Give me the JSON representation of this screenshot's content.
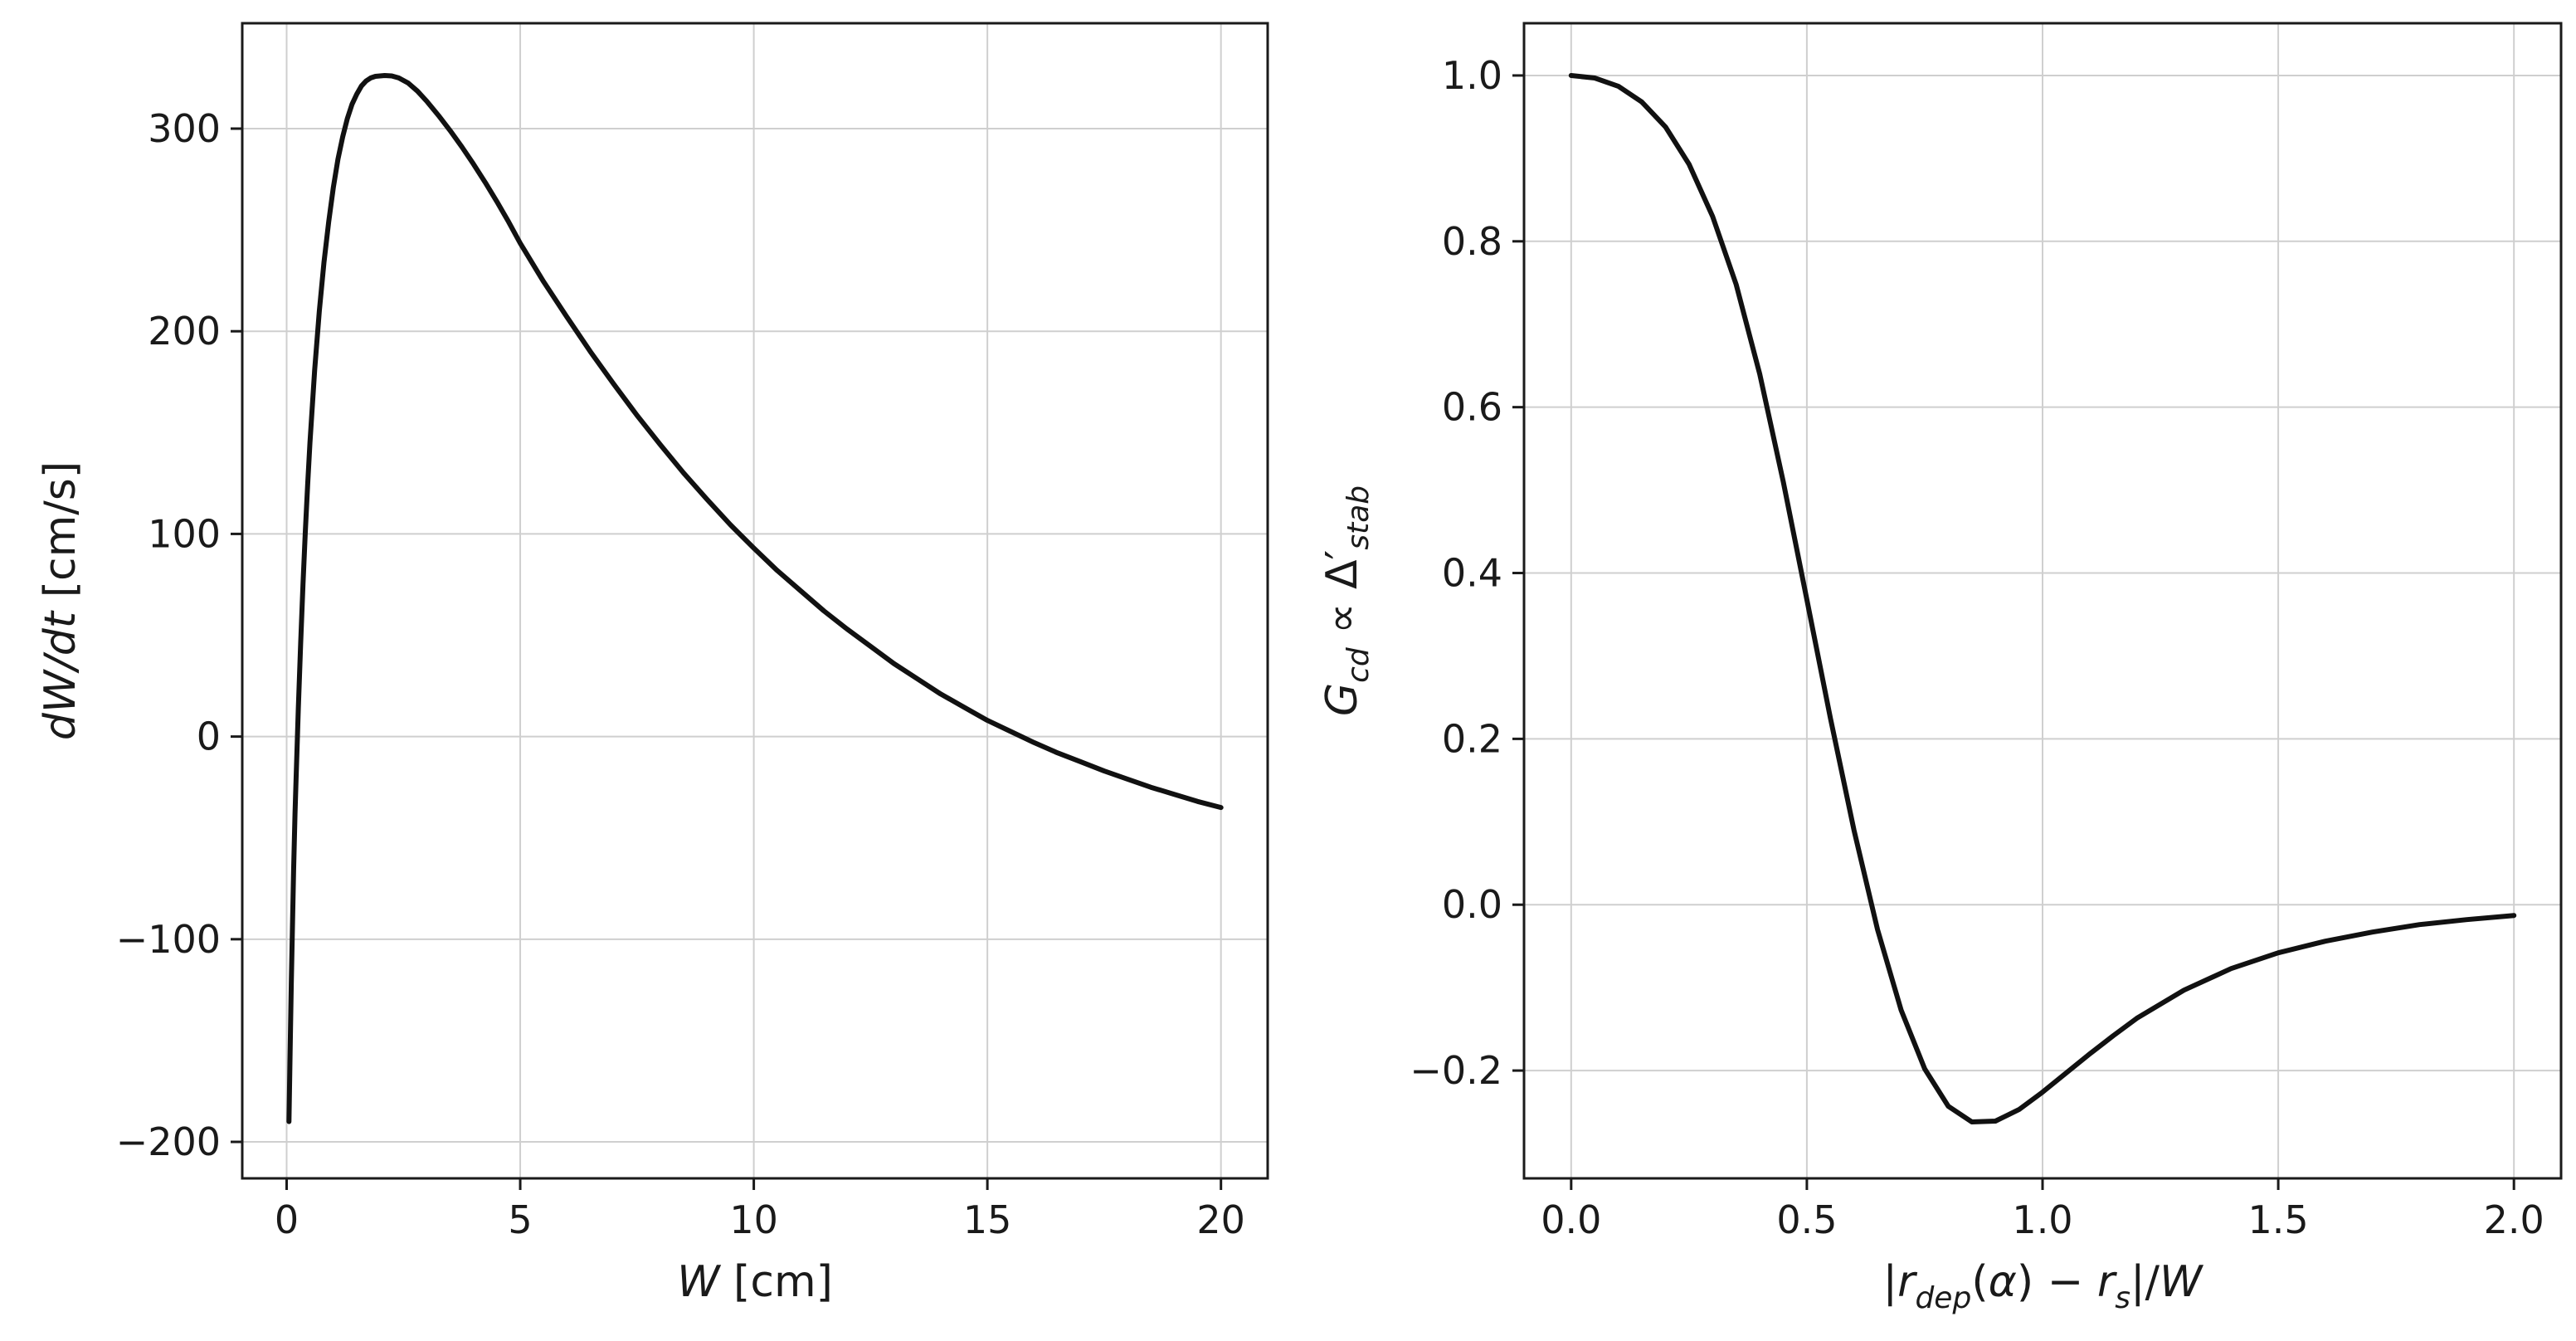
{
  "figure": {
    "background": "#ffffff",
    "grid_color": "#cfcfcf",
    "spine_color": "#1a1a1a",
    "text_color": "#1a1a1a",
    "line_color": "#111111"
  },
  "chart_data": [
    {
      "id": "island-growth-rate",
      "type": "line",
      "title": "",
      "xlabel": "W [cm]",
      "ylabel": "dW/dt [cm/s]",
      "xlabel_rich": [
        {
          "t": "W",
          "i": true
        },
        {
          "t": " [cm]"
        }
      ],
      "ylabel_rich": [
        {
          "t": "dW/dt",
          "i": true
        },
        {
          "t": " [cm/s]"
        }
      ],
      "xlim": [
        -0.95,
        21.0
      ],
      "ylim": [
        -218,
        352
      ],
      "xticks": [
        0,
        5,
        10,
        15,
        20
      ],
      "xtick_labels": [
        "0",
        "5",
        "10",
        "15",
        "20"
      ],
      "yticks": [
        -200,
        -100,
        0,
        100,
        200,
        300
      ],
      "ytick_labels": [
        "−200",
        "−100",
        "0",
        "100",
        "200",
        "300"
      ],
      "grid": true,
      "legend": "none",
      "line": {
        "color": "#111111",
        "width": 6
      },
      "x": [
        0.05,
        0.08,
        0.1,
        0.12,
        0.15,
        0.18,
        0.2,
        0.25,
        0.3,
        0.35,
        0.4,
        0.45,
        0.5,
        0.6,
        0.7,
        0.8,
        0.9,
        1.0,
        1.1,
        1.2,
        1.3,
        1.4,
        1.5,
        1.6,
        1.7,
        1.8,
        1.9,
        2.0,
        2.1,
        2.25,
        2.4,
        2.6,
        2.8,
        3.0,
        3.25,
        3.5,
        3.75,
        4.0,
        4.25,
        4.5,
        4.75,
        5.0,
        5.5,
        6.0,
        6.5,
        7.0,
        7.5,
        8.0,
        8.5,
        9.0,
        9.5,
        10.0,
        10.5,
        11.0,
        11.5,
        12.0,
        12.5,
        13.0,
        13.5,
        14.0,
        14.5,
        15.0,
        15.5,
        16.0,
        16.5,
        17.0,
        17.5,
        18.0,
        18.5,
        19.0,
        19.5,
        20.0
      ],
      "y": [
        -190,
        -148,
        -122,
        -98,
        -66,
        -38,
        -22,
        14,
        46,
        75,
        101,
        124,
        145,
        181,
        210,
        234,
        254,
        271,
        285,
        296,
        305,
        312,
        317,
        321,
        323.5,
        325,
        325.8,
        326,
        326.2,
        326,
        325,
        322.5,
        318.5,
        313.5,
        306.5,
        299,
        291,
        282.5,
        273.5,
        264,
        254,
        243.5,
        224.5,
        207,
        190,
        174,
        158.5,
        144,
        130,
        117,
        104.5,
        93,
        82,
        72,
        62,
        53,
        44.5,
        36,
        28.5,
        21,
        14.5,
        8,
        2.5,
        -3,
        -8,
        -12.5,
        -17,
        -21,
        -25,
        -28.5,
        -32,
        -35
      ]
    },
    {
      "id": "eccd-stabilization-efficiency",
      "type": "line",
      "title": "",
      "xlabel": "|r_dep(α) − r_s|/W",
      "ylabel": "G_cd ∝ Δ′_stab",
      "xlabel_rich": [
        {
          "t": "|"
        },
        {
          "t": "r",
          "i": true
        },
        {
          "t": "dep",
          "i": true,
          "sub": true
        },
        {
          "t": "("
        },
        {
          "t": "α",
          "i": true
        },
        {
          "t": ")"
        },
        {
          "t": " − "
        },
        {
          "t": "r",
          "i": true
        },
        {
          "t": "s",
          "i": true,
          "sub": true
        },
        {
          "t": "|/"
        },
        {
          "t": "W",
          "i": true
        }
      ],
      "ylabel_rich": [
        {
          "t": "G",
          "i": true
        },
        {
          "t": "cd",
          "i": true,
          "sub": true
        },
        {
          "t": " ∝ Δ"
        },
        {
          "t": "′"
        },
        {
          "t": "stab",
          "i": true,
          "sub": true
        }
      ],
      "xlim": [
        -0.1,
        2.1
      ],
      "ylim": [
        -0.33,
        1.063
      ],
      "xticks": [
        0.0,
        0.5,
        1.0,
        1.5,
        2.0
      ],
      "xtick_labels": [
        "0.0",
        "0.5",
        "1.0",
        "1.5",
        "2.0"
      ],
      "yticks": [
        -0.2,
        0.0,
        0.2,
        0.4,
        0.6,
        0.8,
        1.0
      ],
      "ytick_labels": [
        "−0.2",
        "0.0",
        "0.2",
        "0.4",
        "0.6",
        "0.8",
        "1.0"
      ],
      "grid": true,
      "legend": "none",
      "line": {
        "color": "#111111",
        "width": 6
      },
      "x": [
        0.0,
        0.05,
        0.1,
        0.15,
        0.2,
        0.25,
        0.3,
        0.35,
        0.4,
        0.45,
        0.5,
        0.55,
        0.6,
        0.65,
        0.7,
        0.75,
        0.8,
        0.85,
        0.9,
        0.95,
        1.0,
        1.05,
        1.1,
        1.15,
        1.2,
        1.3,
        1.4,
        1.5,
        1.6,
        1.7,
        1.8,
        1.9,
        2.0
      ],
      "y": [
        1.0,
        0.997,
        0.987,
        0.968,
        0.938,
        0.893,
        0.83,
        0.748,
        0.64,
        0.51,
        0.368,
        0.225,
        0.09,
        -0.03,
        -0.127,
        -0.198,
        -0.243,
        -0.262,
        -0.261,
        -0.247,
        -0.226,
        -0.203,
        -0.18,
        -0.158,
        -0.137,
        -0.103,
        -0.077,
        -0.058,
        -0.044,
        -0.033,
        -0.024,
        -0.018,
        -0.013
      ]
    }
  ]
}
